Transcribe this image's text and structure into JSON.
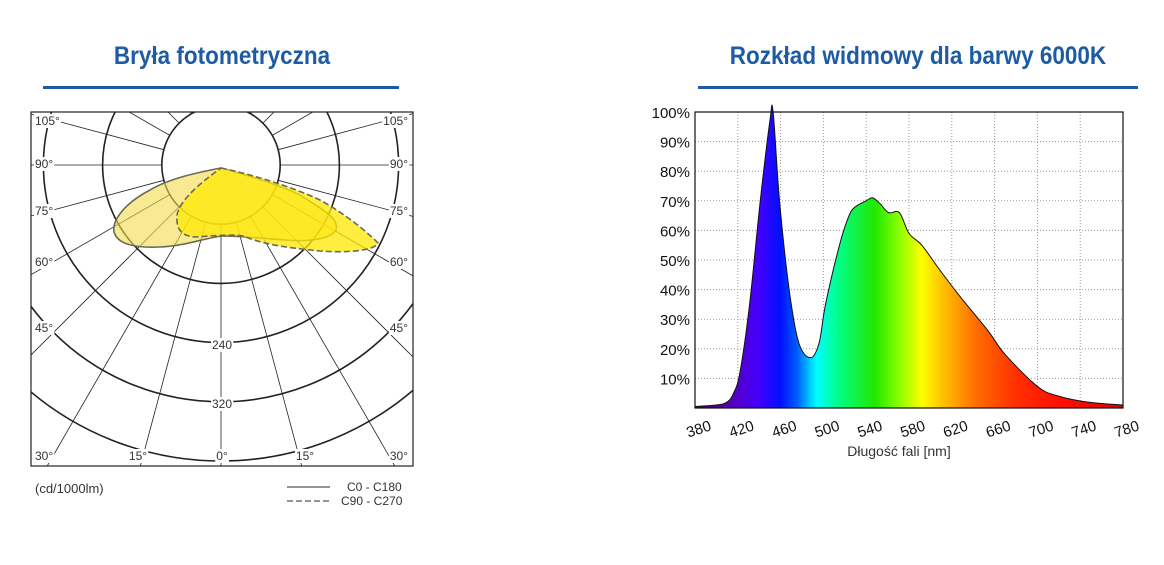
{
  "left_title": "Bryła fotometryczna",
  "right_title": "Rozkład widmowy dla barwy 6000K",
  "chart_data": [
    {
      "type": "polar",
      "title": "Bryła fotometryczna",
      "unit_label": "(cd/1000lm)",
      "ring_values": [
        80,
        160,
        240,
        320,
        400
      ],
      "ring_labels": [
        "240",
        "320"
      ],
      "angle_labels_left": [
        "105°",
        "90°",
        "75°",
        "60°",
        "45°",
        "30°",
        "15°"
      ],
      "angle_labels_right": [
        "105°",
        "90°",
        "75°",
        "60°",
        "45°",
        "30°",
        "15°"
      ],
      "angle_label_center": "0°",
      "legend": [
        {
          "name": "C0 - C180",
          "style": "solid"
        },
        {
          "name": "C90 - C270",
          "style": "dashed"
        }
      ],
      "colors": {
        "c0": "#f3dc4a",
        "c90": "#ffe800",
        "line": "#6b6a55",
        "grid": "#222222"
      }
    },
    {
      "type": "area",
      "title": "Rozkład widmowy dla barwy 6000K",
      "xlabel": "Długość fali [nm]",
      "ylabel": "",
      "xlim": [
        380,
        780
      ],
      "ylim": [
        0,
        100
      ],
      "x_ticks": [
        380,
        420,
        460,
        500,
        540,
        580,
        620,
        660,
        700,
        740,
        780
      ],
      "y_ticks": [
        "10%",
        "20%",
        "30%",
        "40%",
        "50%",
        "60%",
        "70%",
        "80%",
        "90%",
        "100%"
      ],
      "grid": "dotted",
      "x": [
        380,
        400,
        410,
        416,
        422,
        431,
        441,
        450,
        453,
        459,
        468,
        477,
        488,
        496,
        502,
        515,
        524,
        530,
        540,
        546,
        553,
        561,
        571,
        580,
        592,
        608,
        627,
        654,
        670,
        701,
        720,
        738,
        760,
        780
      ],
      "y": [
        0.5,
        1,
        2,
        5,
        12,
        35,
        70,
        97,
        100,
        70,
        40,
        22,
        17,
        22,
        35,
        55,
        65,
        68,
        70,
        71,
        69,
        66,
        66,
        59,
        55,
        47,
        38,
        26,
        18,
        7,
        4,
        2.5,
        1.5,
        1
      ]
    }
  ]
}
